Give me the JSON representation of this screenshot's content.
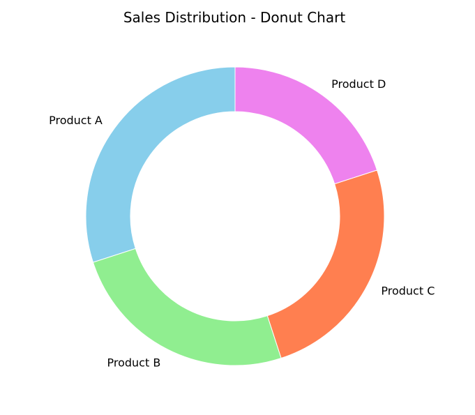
{
  "chart_data": {
    "type": "pie",
    "title": "Sales Distribution - Donut Chart",
    "donut": true,
    "start_angle_deg": 90,
    "direction": "counterclockwise",
    "categories": [
      "Product A",
      "Product B",
      "Product C",
      "Product D"
    ],
    "values": [
      30,
      25,
      25,
      20
    ],
    "colors": [
      "#87CEEB",
      "#90EE90",
      "#FF7F50",
      "#EE82EE"
    ],
    "legend": "none"
  }
}
